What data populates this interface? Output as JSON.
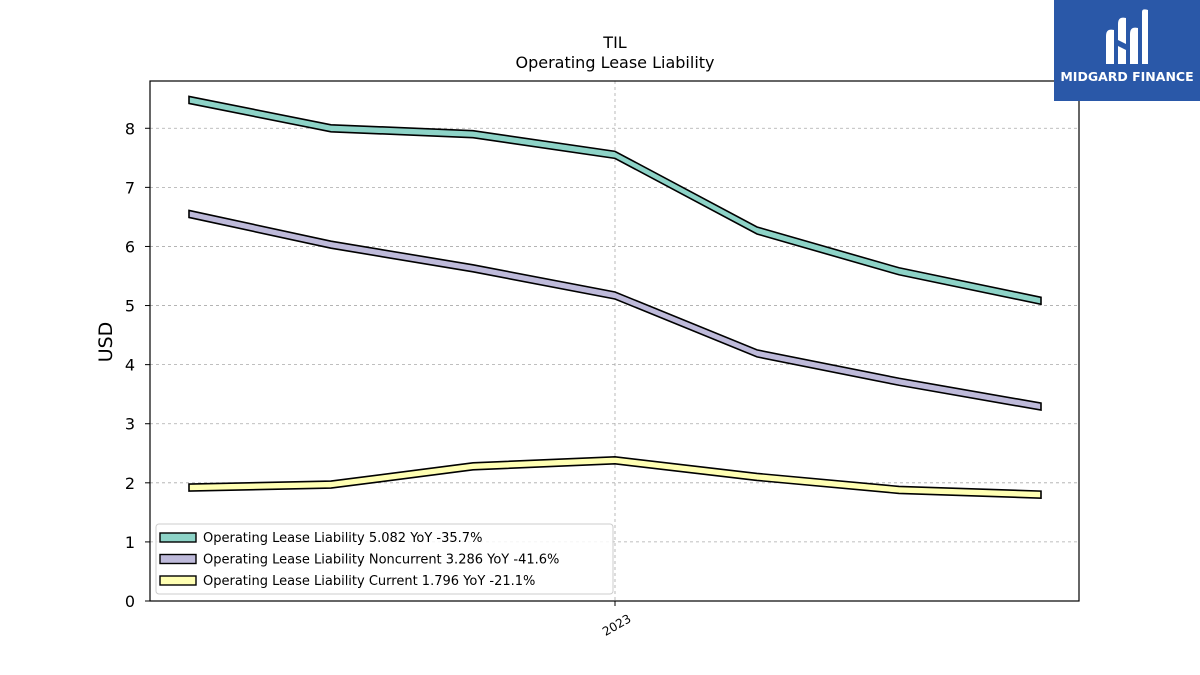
{
  "brand": {
    "name": "MIDGARD FINANCE",
    "color": "#2a58a8"
  },
  "chart_data": {
    "type": "line",
    "title": "TIL",
    "subtitle": "Operating Lease Liability",
    "xlabel": "",
    "ylabel": "USD",
    "x_tick_labels": [
      "2023"
    ],
    "y_ticks": [
      0,
      1,
      2,
      3,
      4,
      5,
      6,
      7,
      8
    ],
    "ylim": [
      0,
      8.8
    ],
    "grid": true,
    "legend_position": "lower-left",
    "series": [
      {
        "name": "Operating Lease Liability",
        "legend": "Operating Lease Liability  5.082 YoY -35.7%",
        "color": "#8dd3c7",
        "values": [
          8.48,
          8.0,
          7.9,
          7.55,
          6.27,
          5.58,
          5.08
        ]
      },
      {
        "name": "Operating Lease Liability Noncurrent",
        "legend": "Operating Lease Liability Noncurrent  3.286 YoY -41.6%",
        "color": "#bebada",
        "values": [
          6.55,
          6.03,
          5.63,
          5.17,
          4.19,
          3.71,
          3.29
        ]
      },
      {
        "name": "Operating Lease Liability Current",
        "legend": "Operating Lease Liability Current  1.796 YoY -21.1%",
        "color": "#ffffb3",
        "values": [
          1.92,
          1.97,
          2.28,
          2.38,
          2.1,
          1.88,
          1.8
        ]
      }
    ]
  }
}
